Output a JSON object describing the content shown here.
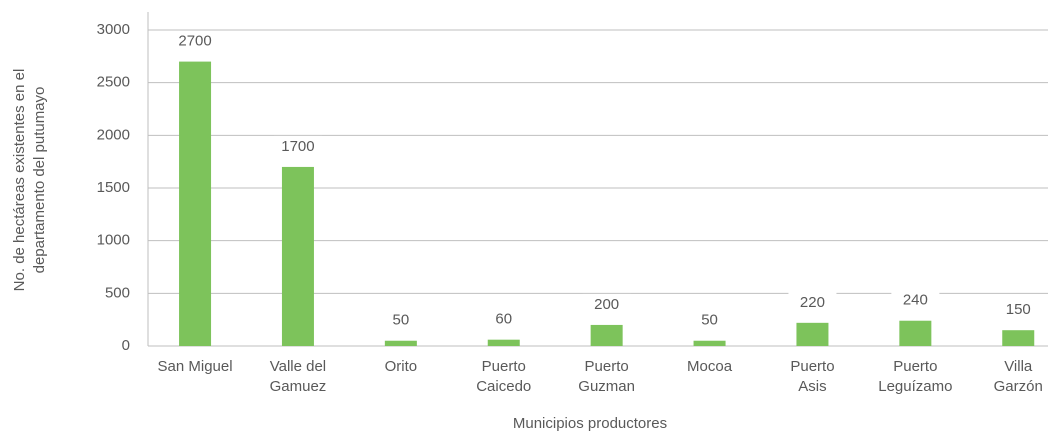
{
  "chart_data": {
    "type": "bar",
    "categories": [
      "San Miguel",
      "Valle del\nGamuez",
      "Orito",
      "Puerto\nCaicedo",
      "Puerto\nGuzman",
      "Mocoa",
      "Puerto\nAsis",
      "Puerto\nLeguízamo",
      "Villa\nGarzón"
    ],
    "values": [
      2700,
      1700,
      50,
      60,
      200,
      50,
      220,
      240,
      150
    ],
    "color": "#7dc35b",
    "x_label": "Municipios productores",
    "y_label": "No. de hectáreas existentes en el\ndepartamento del putumayo",
    "ylim": [
      0,
      3000
    ],
    "yticks": [
      0,
      500,
      1000,
      1500,
      2000,
      2500,
      3000
    ],
    "grid": true
  }
}
